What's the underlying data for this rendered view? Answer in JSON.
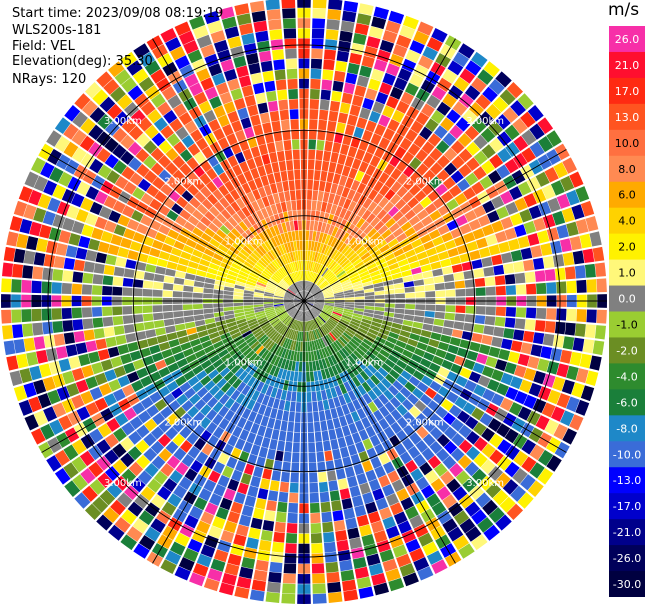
{
  "info": {
    "start_time": "Start time: 2023/09/08 08:19:19",
    "site": "WLS200s-181",
    "field": "Field: VEL",
    "elevation": "Elevation(deg): 35.30",
    "nrays": "NRays: 120"
  },
  "chart_data": {
    "type": "heatmap",
    "subtype": "ppi-polar",
    "field": "VEL",
    "unit": "m/s",
    "nrays": 120,
    "elevation_deg": 35.3,
    "range_rings_km": [
      1.0,
      2.0,
      3.0
    ],
    "range_ring_labels": [
      "1.00km",
      "2.00km",
      "3.00km"
    ],
    "max_range_km": 3.55,
    "colorbar": {
      "unit_label": "m/s",
      "levels": [
        {
          "label": "26.0",
          "color": "#f72fa8"
        },
        {
          "label": "21.0",
          "color": "#ff0f2f"
        },
        {
          "label": "17.0",
          "color": "#ff2a12"
        },
        {
          "label": "13.0",
          "color": "#ff5420"
        },
        {
          "label": "10.0",
          "color": "#ff7040"
        },
        {
          "label": "8.0",
          "color": "#ff8a52"
        },
        {
          "label": "6.0",
          "color": "#ffaa00"
        },
        {
          "label": "4.0",
          "color": "#ffd200"
        },
        {
          "label": "2.0",
          "color": "#fff200"
        },
        {
          "label": "1.0",
          "color": "#fff87a"
        },
        {
          "label": "0.0",
          "color": "#808080"
        },
        {
          "label": "-1.0",
          "color": "#9acd32"
        },
        {
          "label": "-2.0",
          "color": "#6b8e23"
        },
        {
          "label": "-4.0",
          "color": "#2e8b2e"
        },
        {
          "label": "-6.0",
          "color": "#1a7f3a"
        },
        {
          "label": "-8.0",
          "color": "#1e88c8"
        },
        {
          "label": "-10.0",
          "color": "#3a6cd8"
        },
        {
          "label": "-13.0",
          "color": "#0000ff"
        },
        {
          "label": "-17.0",
          "color": "#0000cc"
        },
        {
          "label": "-21.0",
          "color": "#00008b"
        },
        {
          "label": "-26.0",
          "color": "#00005a"
        },
        {
          "label": "-30.0",
          "color": "#000040"
        }
      ]
    },
    "pattern": "Near field: positive velocities (yellow to orange) to the north, near-zero (gray) along east-west, negative velocities (green to blue) to the south; beyond about 2.5 km the field is noisy with all colors mixed."
  }
}
